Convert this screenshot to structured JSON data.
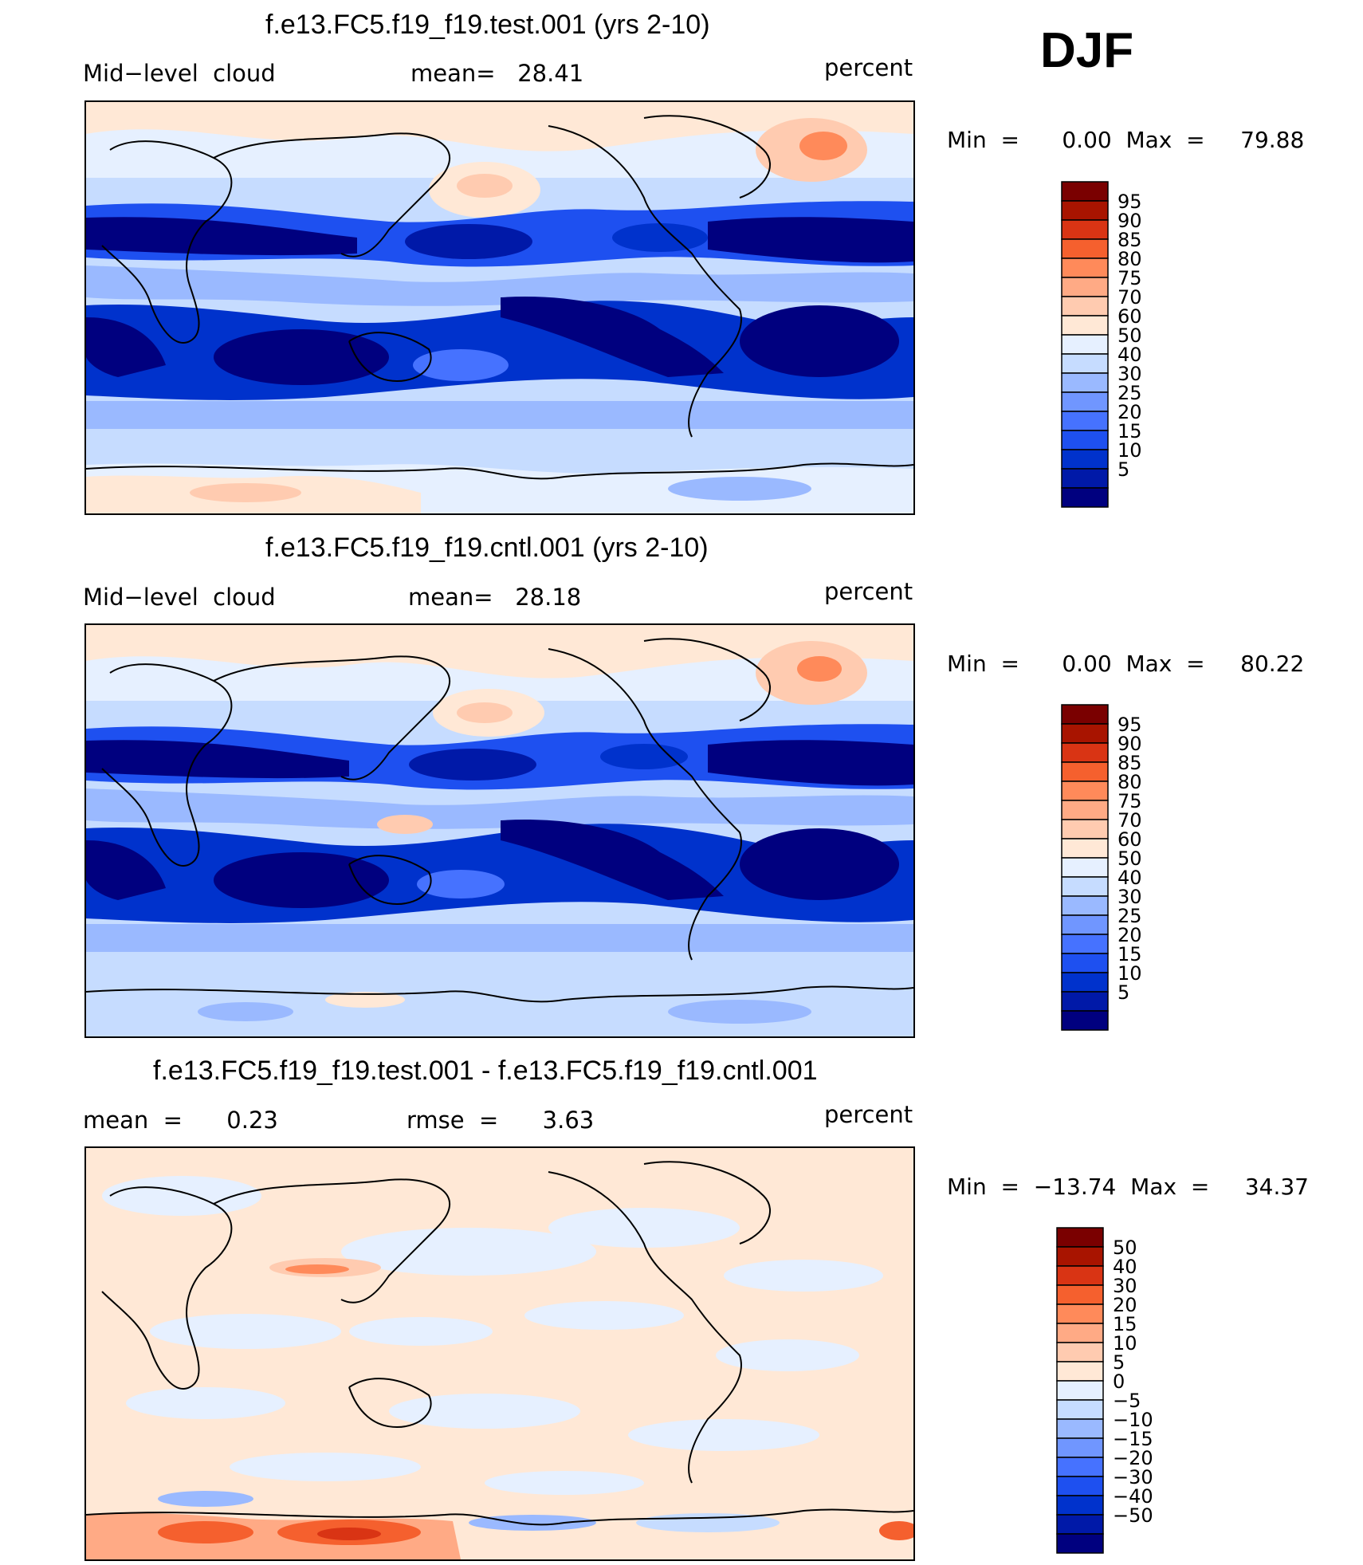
{
  "season": "DJF",
  "panels": [
    {
      "title": "f.e13.FC5.f19_f19.test.001 (yrs 2-10)",
      "left_label": "Mid−level  cloud",
      "mid_label": "mean=   28.41",
      "right_label": "percent",
      "minmax": "Min  =      0.00  Max  =     79.88",
      "colorbar": {
        "levels": [
          "5",
          "10",
          "15",
          "20",
          "25",
          "30",
          "40",
          "50",
          "60",
          "70",
          "75",
          "80",
          "85",
          "90",
          "95"
        ],
        "colors": [
          "#00007f",
          "#0019a8",
          "#0032cc",
          "#1e50f0",
          "#4672ff",
          "#7096ff",
          "#9ab9ff",
          "#c6dcff",
          "#e6f0ff",
          "#ffe8d6",
          "#ffcbb0",
          "#ffaa85",
          "#ff8a5a",
          "#f5602e",
          "#d93414",
          "#a81400",
          "#7a0000"
        ]
      }
    },
    {
      "title": "f.e13.FC5.f19_f19.cntl.001 (yrs 2-10)",
      "left_label": "Mid−level  cloud",
      "mid_label": "mean=   28.18",
      "right_label": "percent",
      "minmax": "Min  =      0.00  Max  =     80.22",
      "colorbar": {
        "levels": [
          "5",
          "10",
          "15",
          "20",
          "25",
          "30",
          "40",
          "50",
          "60",
          "70",
          "75",
          "80",
          "85",
          "90",
          "95"
        ],
        "colors": [
          "#00007f",
          "#0019a8",
          "#0032cc",
          "#1e50f0",
          "#4672ff",
          "#7096ff",
          "#9ab9ff",
          "#c6dcff",
          "#e6f0ff",
          "#ffe8d6",
          "#ffcbb0",
          "#ffaa85",
          "#ff8a5a",
          "#f5602e",
          "#d93414",
          "#a81400",
          "#7a0000"
        ]
      }
    },
    {
      "title": "f.e13.FC5.f19_f19.test.001 - f.e13.FC5.f19_f19.cntl.001",
      "left_label": "mean  =      0.23",
      "mid_label": "rmse  =      3.63",
      "right_label": "percent",
      "minmax": "Min  =  −13.74  Max  =     34.37",
      "colorbar": {
        "levels": [
          "−50",
          "−40",
          "−30",
          "−20",
          "−15",
          "−10",
          "−5",
          "0",
          "5",
          "10",
          "15",
          "20",
          "30",
          "40",
          "50"
        ],
        "colors": [
          "#00007f",
          "#0019a8",
          "#0032cc",
          "#1e50f0",
          "#4672ff",
          "#7096ff",
          "#9ab9ff",
          "#c6dcff",
          "#e6f0ff",
          "#ffe8d6",
          "#ffcbb0",
          "#ffaa85",
          "#ff8a5a",
          "#f5602e",
          "#d93414",
          "#a81400",
          "#7a0000"
        ]
      }
    }
  ],
  "chart_data": [
    {
      "type": "heatmap",
      "title": "f.e13.FC5.f19_f19.test.001 (yrs 2-10)",
      "variable": "Mid−level  cloud",
      "units": "percent",
      "mean": 28.41,
      "min": 0.0,
      "max": 79.88,
      "contour_levels": [
        5,
        10,
        15,
        20,
        25,
        30,
        40,
        50,
        60,
        70,
        75,
        80,
        85,
        90,
        95
      ]
    },
    {
      "type": "heatmap",
      "title": "f.e13.FC5.f19_f19.cntl.001 (yrs 2-10)",
      "variable": "Mid−level  cloud",
      "units": "percent",
      "mean": 28.18,
      "min": 0.0,
      "max": 80.22,
      "contour_levels": [
        5,
        10,
        15,
        20,
        25,
        30,
        40,
        50,
        60,
        70,
        75,
        80,
        85,
        90,
        95
      ]
    },
    {
      "type": "heatmap",
      "title": "f.e13.FC5.f19_f19.test.001 - f.e13.FC5.f19_f19.cntl.001",
      "units": "percent",
      "mean": 0.23,
      "rmse": 3.63,
      "min": -13.74,
      "max": 34.37,
      "contour_levels": [
        -50,
        -40,
        -30,
        -20,
        -15,
        -10,
        -5,
        0,
        5,
        10,
        15,
        20,
        30,
        40,
        50
      ]
    }
  ]
}
